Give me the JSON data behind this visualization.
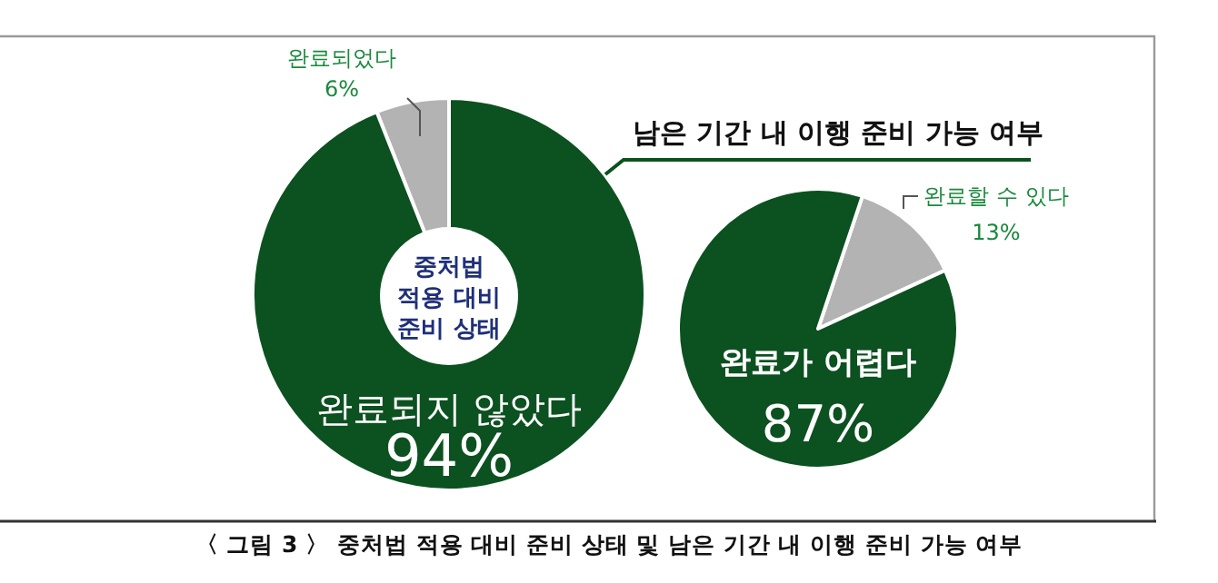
{
  "chart_data": [
    {
      "type": "donut",
      "title": "중처법 적용 대비 준비 상태",
      "categories": [
        "완료되었다",
        "완료되지 않았다"
      ],
      "values": [
        6,
        94
      ],
      "colors": [
        "#b3b3b3",
        "#0c5120"
      ],
      "value_labels": [
        "6%",
        "94%"
      ],
      "annotations": [
        "〈 그림 3 〉 중처법 적용 대비 준비 상태 및 남은 기간 내 이행 준비 가능 여부"
      ]
    },
    {
      "type": "pie",
      "title": "남은 기간 내 이행 준비 가능 여부",
      "categories": [
        "완료할 수 있다",
        "완료가 어렵다"
      ],
      "values": [
        13,
        87
      ],
      "colors": [
        "#b3b3b3",
        "#0c5120"
      ],
      "value_labels": [
        "13%",
        "87%"
      ]
    }
  ]
}
